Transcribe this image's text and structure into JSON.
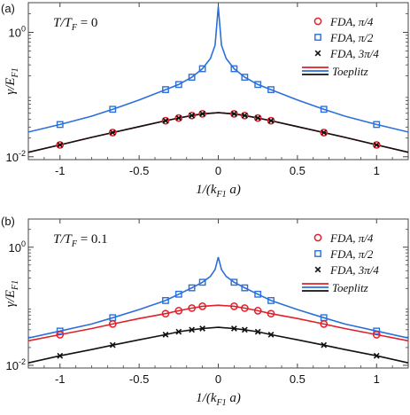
{
  "chart_data": [
    {
      "panel_label": "(a)",
      "type": "line",
      "annotation": "T/T_F = 0",
      "xlabel": "1/(k_F1 a)",
      "ylabel": "γ/E_F1",
      "xlim": [
        -1.2,
        1.2
      ],
      "ylim": [
        0.009,
        3.0
      ],
      "yscale": "log",
      "x_ticks": [
        "-1",
        "-0.5",
        "0",
        "0.5",
        "1"
      ],
      "y_ticks": [
        "10^-2",
        "10^0"
      ],
      "legend": [
        "FDA, π/4",
        "FDA, π/2",
        "FDA, 3π/4",
        "Toeplitz"
      ],
      "legend_position": "top-right",
      "series": [
        {
          "name": "FDA, π/2",
          "color": "#2a6fdb",
          "marker": "square",
          "x": [
            -1,
            -0.667,
            -0.333,
            -0.25,
            -0.167,
            -0.1,
            0.1,
            0.167,
            0.25,
            0.333,
            0.667,
            1
          ],
          "y": [
            0.033,
            0.058,
            0.12,
            0.145,
            0.19,
            0.26,
            0.26,
            0.19,
            0.145,
            0.12,
            0.058,
            0.033
          ]
        },
        {
          "name": "FDA, π/4",
          "color": "#e0202a",
          "marker": "circle",
          "x": [
            -1,
            -0.667,
            -0.333,
            -0.25,
            -0.167,
            -0.1,
            0.1,
            0.167,
            0.25,
            0.333,
            0.667,
            1
          ],
          "y": [
            0.0155,
            0.0245,
            0.038,
            0.042,
            0.046,
            0.049,
            0.049,
            0.046,
            0.042,
            0.038,
            0.0245,
            0.0155
          ]
        },
        {
          "name": "FDA, 3π/4",
          "color": "#111111",
          "marker": "x",
          "x": [
            -1,
            -0.667,
            -0.333,
            -0.25,
            -0.167,
            -0.1,
            0.1,
            0.167,
            0.25,
            0.333,
            0.667,
            1
          ],
          "y": [
            0.0155,
            0.0245,
            0.038,
            0.042,
            0.046,
            0.049,
            0.049,
            0.046,
            0.042,
            0.038,
            0.0245,
            0.0155
          ]
        }
      ],
      "curves": [
        {
          "name": "Toeplitz",
          "color": "#2a6fdb",
          "x": [
            -1.2,
            -1,
            -0.8,
            -0.667,
            -0.5,
            -0.333,
            -0.25,
            -0.167,
            -0.1,
            -0.05,
            -0.02,
            0,
            0.02,
            0.05,
            0.1,
            0.167,
            0.25,
            0.333,
            0.5,
            0.667,
            0.8,
            1,
            1.2
          ],
          "y": [
            0.025,
            0.033,
            0.045,
            0.058,
            0.082,
            0.12,
            0.145,
            0.19,
            0.26,
            0.38,
            0.62,
            2.6,
            0.62,
            0.38,
            0.26,
            0.19,
            0.145,
            0.12,
            0.082,
            0.058,
            0.045,
            0.033,
            0.025
          ]
        },
        {
          "name": "Toeplitz",
          "color": "#e0202a",
          "x": [
            -1.2,
            -1,
            -0.8,
            -0.667,
            -0.5,
            -0.333,
            -0.25,
            -0.167,
            -0.1,
            0,
            0.1,
            0.167,
            0.25,
            0.333,
            0.5,
            0.667,
            0.8,
            1,
            1.2
          ],
          "y": [
            0.0118,
            0.0155,
            0.0205,
            0.0245,
            0.0305,
            0.038,
            0.042,
            0.046,
            0.049,
            0.051,
            0.049,
            0.046,
            0.042,
            0.038,
            0.0305,
            0.0245,
            0.0205,
            0.0155,
            0.0118
          ]
        },
        {
          "name": "Toeplitz",
          "color": "#111111",
          "x": [
            -1.2,
            -1,
            -0.8,
            -0.667,
            -0.5,
            -0.333,
            -0.25,
            -0.167,
            -0.1,
            0,
            0.1,
            0.167,
            0.25,
            0.333,
            0.5,
            0.667,
            0.8,
            1,
            1.2
          ],
          "y": [
            0.0118,
            0.0155,
            0.0205,
            0.0245,
            0.0305,
            0.038,
            0.042,
            0.046,
            0.049,
            0.051,
            0.049,
            0.046,
            0.042,
            0.038,
            0.0305,
            0.0245,
            0.0205,
            0.0155,
            0.0118
          ]
        }
      ]
    },
    {
      "panel_label": "(b)",
      "type": "line",
      "annotation": "T/T_F = 0.1",
      "xlabel": "1/(k_F1 a)",
      "ylabel": "γ/E_F1",
      "xlim": [
        -1.2,
        1.2
      ],
      "ylim": [
        0.009,
        3.0
      ],
      "yscale": "log",
      "x_ticks": [
        "-1",
        "-0.5",
        "0",
        "0.5",
        "1"
      ],
      "y_ticks": [
        "10^-2",
        "10^0"
      ],
      "legend": [
        "FDA, π/4",
        "FDA, π/2",
        "FDA, 3π/4",
        "Toeplitz"
      ],
      "legend_position": "top-right",
      "series": [
        {
          "name": "FDA, π/2",
          "color": "#2a6fdb",
          "marker": "square",
          "x": [
            -1,
            -0.667,
            -0.333,
            -0.25,
            -0.167,
            -0.1,
            0.1,
            0.167,
            0.25,
            0.333,
            0.667,
            1
          ],
          "y": [
            0.038,
            0.064,
            0.125,
            0.16,
            0.205,
            0.255,
            0.255,
            0.205,
            0.16,
            0.125,
            0.064,
            0.038
          ]
        },
        {
          "name": "FDA, π/4",
          "color": "#e0202a",
          "marker": "circle",
          "x": [
            -1,
            -0.667,
            -0.333,
            -0.25,
            -0.167,
            -0.1,
            0.1,
            0.167,
            0.25,
            0.333,
            0.667,
            1
          ],
          "y": [
            0.033,
            0.05,
            0.075,
            0.084,
            0.093,
            0.1,
            0.1,
            0.093,
            0.084,
            0.075,
            0.05,
            0.033
          ]
        },
        {
          "name": "FDA, 3π/4",
          "color": "#111111",
          "marker": "x",
          "x": [
            -1,
            -0.667,
            -0.333,
            -0.25,
            -0.167,
            -0.1,
            0.1,
            0.167,
            0.25,
            0.333,
            0.667,
            1
          ],
          "y": [
            0.0145,
            0.022,
            0.033,
            0.037,
            0.04,
            0.042,
            0.042,
            0.04,
            0.037,
            0.033,
            0.022,
            0.0145
          ]
        }
      ],
      "curves": [
        {
          "name": "Toeplitz",
          "color": "#2a6fdb",
          "x": [
            -1.2,
            -1,
            -0.8,
            -0.667,
            -0.5,
            -0.333,
            -0.25,
            -0.167,
            -0.1,
            -0.05,
            -0.02,
            0,
            0.02,
            0.05,
            0.1,
            0.167,
            0.25,
            0.333,
            0.5,
            0.667,
            0.8,
            1,
            1.2
          ],
          "y": [
            0.029,
            0.038,
            0.05,
            0.064,
            0.088,
            0.125,
            0.16,
            0.205,
            0.255,
            0.32,
            0.42,
            0.68,
            0.42,
            0.32,
            0.255,
            0.205,
            0.16,
            0.125,
            0.088,
            0.064,
            0.05,
            0.038,
            0.029
          ]
        },
        {
          "name": "Toeplitz",
          "color": "#e0202a",
          "x": [
            -1.2,
            -1,
            -0.8,
            -0.667,
            -0.5,
            -0.333,
            -0.25,
            -0.167,
            -0.1,
            0,
            0.1,
            0.167,
            0.25,
            0.333,
            0.5,
            0.667,
            0.8,
            1,
            1.2
          ],
          "y": [
            0.026,
            0.033,
            0.042,
            0.05,
            0.062,
            0.075,
            0.084,
            0.093,
            0.1,
            0.104,
            0.1,
            0.093,
            0.084,
            0.075,
            0.062,
            0.05,
            0.042,
            0.033,
            0.026
          ]
        },
        {
          "name": "Toeplitz",
          "color": "#111111",
          "x": [
            -1.2,
            -1,
            -0.8,
            -0.667,
            -0.5,
            -0.333,
            -0.25,
            -0.167,
            -0.1,
            0,
            0.1,
            0.167,
            0.25,
            0.333,
            0.5,
            0.667,
            0.8,
            1,
            1.2
          ],
          "y": [
            0.011,
            0.0145,
            0.0185,
            0.022,
            0.027,
            0.033,
            0.037,
            0.04,
            0.042,
            0.044,
            0.042,
            0.04,
            0.037,
            0.033,
            0.027,
            0.022,
            0.0185,
            0.0145,
            0.011
          ]
        }
      ]
    }
  ]
}
